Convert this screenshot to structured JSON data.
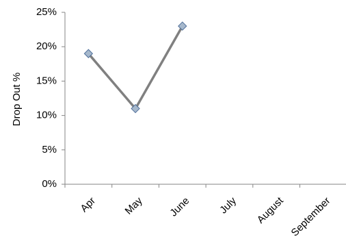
{
  "chart_data": {
    "type": "line",
    "title": "",
    "xlabel": "",
    "ylabel": "Drop Out %",
    "categories": [
      "Apr",
      "May",
      "June",
      "July",
      "August",
      "September"
    ],
    "series": [
      {
        "values": [
          19,
          11,
          23,
          null,
          null,
          null
        ]
      }
    ],
    "ylim": [
      0,
      25
    ],
    "yticks": [
      0,
      5,
      10,
      15,
      20,
      25
    ],
    "ytick_labels": [
      "0%",
      "5%",
      "10%",
      "15%",
      "20%",
      "25%"
    ],
    "grid": false,
    "legend": "none",
    "colors": {
      "line": "#808080",
      "marker_fill": "#a6b8cc",
      "marker_stroke": "#4f6f9a",
      "axis": "#868686"
    },
    "marker": "diamond"
  }
}
